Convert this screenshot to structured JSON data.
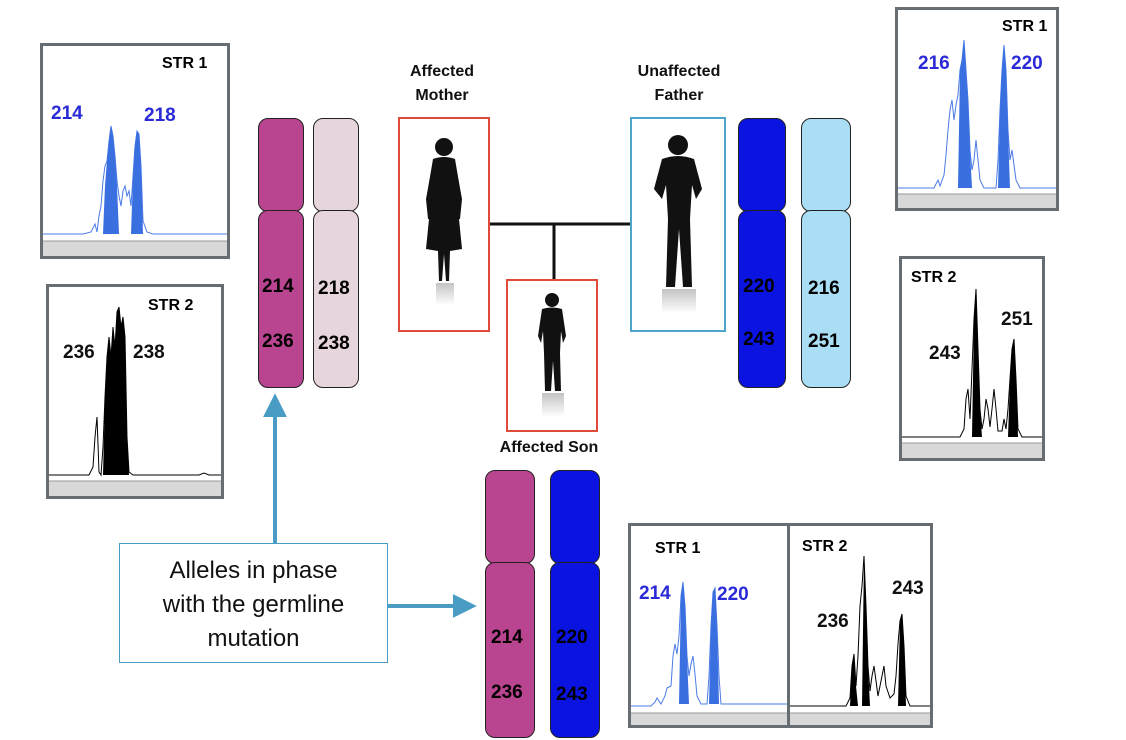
{
  "people": {
    "mother": {
      "label_line1": "Affected",
      "label_line2": "Mother"
    },
    "father": {
      "label_line1": "Unaffected",
      "label_line2": "Father"
    },
    "son": {
      "label": "Affected Son"
    }
  },
  "chromosomes": {
    "mother_a": {
      "top": "214",
      "bottom": "236",
      "color": "#b9448f"
    },
    "mother_b": {
      "top": "218",
      "bottom": "238",
      "color": "#e6d5dc"
    },
    "father_a": {
      "top": "220",
      "bottom": "243",
      "color": "#0a13e0"
    },
    "father_b": {
      "top": "216",
      "bottom": "251",
      "color": "#a9def4"
    },
    "son_a": {
      "top": "214",
      "bottom": "236",
      "color": "#b9448f"
    },
    "son_b": {
      "top": "220",
      "bottom": "243",
      "color": "#0a13e0"
    }
  },
  "electropherograms": {
    "mother_str1": {
      "title": "STR 1",
      "allele_left": "214",
      "allele_right": "218"
    },
    "mother_str2": {
      "title": "STR 2",
      "allele_left": "236",
      "allele_right": "238"
    },
    "father_str1": {
      "title": "STR 1",
      "allele_left": "216",
      "allele_right": "220"
    },
    "father_str2": {
      "title": "STR 2",
      "allele_left": "243",
      "allele_right": "251"
    },
    "son_str1": {
      "title": "STR 1",
      "allele_left": "214",
      "allele_right": "220"
    },
    "son_str2": {
      "title": "STR 2",
      "allele_left": "236",
      "allele_right": "243"
    }
  },
  "callout": {
    "line1": "Alleles in phase",
    "line2": "with the germline",
    "line3": "mutation"
  },
  "colors": {
    "affected_box": "#e04a3a",
    "unaffected_box": "#4ea5cc",
    "arrow": "#4a9cc4",
    "str1_trace": "#3a6fe0",
    "str2_trace": "#000000"
  }
}
